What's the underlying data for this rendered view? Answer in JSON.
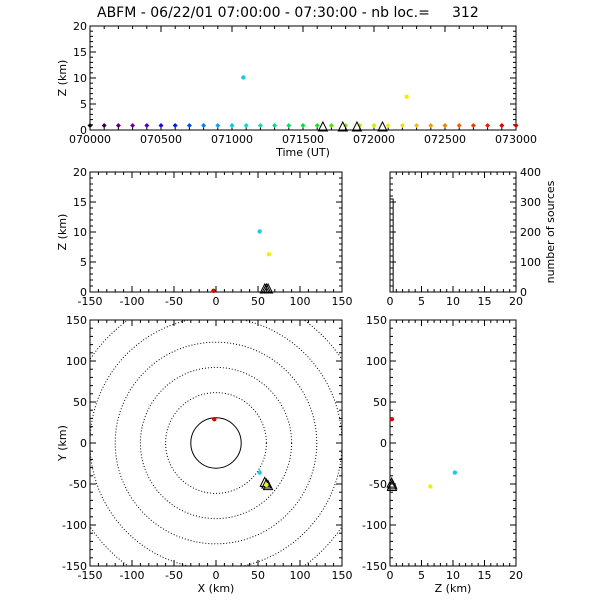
{
  "title": {
    "text": "ABFM - 06/22/01 07:00:00 - 07:30:00 - nb loc.=",
    "count": "312"
  },
  "chart_data": [
    {
      "id": "time-height",
      "type": "scatter",
      "xlabel": "Time (UT)",
      "ylabel": "Z (km)",
      "xlim": [
        70000,
        73000
      ],
      "ylim": [
        0,
        20
      ],
      "xticks": [
        "070000",
        "070500",
        "071000",
        "071500",
        "072000",
        "072500",
        "073000"
      ],
      "yticks": [
        "0",
        "5",
        "10",
        "15",
        "20"
      ],
      "points": [
        {
          "x": 71080,
          "y": 10.1,
          "color": "#1ec8e6"
        },
        {
          "x": 72230,
          "y": 6.4,
          "color": "#f0f000"
        }
      ],
      "sensors": [
        71640,
        71780,
        71880,
        72060
      ],
      "colorbar_x": [
        70000,
        70100,
        70200,
        70300,
        70400,
        70500,
        70600,
        70700,
        70800,
        70900,
        71000,
        71100,
        71200,
        71300,
        71400,
        71500,
        71600,
        71700,
        71800,
        71900,
        72000,
        72100,
        72200,
        72300,
        72400,
        72500,
        72600,
        72700,
        72800,
        72900,
        73000
      ],
      "colorbar_colors": [
        "#000000",
        "#3a0050",
        "#5a0078",
        "#6a00a0",
        "#5000c8",
        "#2a00e0",
        "#0020f0",
        "#0050f0",
        "#0080f0",
        "#00a8f0",
        "#00c8e6",
        "#00d8d0",
        "#00e0b0",
        "#00e090",
        "#00e070",
        "#00e040",
        "#20e020",
        "#50e000",
        "#80e800",
        "#a8f000",
        "#c8f000",
        "#e6f000",
        "#f0e000",
        "#f0c000",
        "#f0a000",
        "#f08000",
        "#f06000",
        "#f04000",
        "#e82000",
        "#e00000",
        "#d00000"
      ]
    },
    {
      "id": "x-height",
      "type": "scatter",
      "xlabel": "",
      "ylabel": "Z (km)",
      "xlim": [
        -150,
        150
      ],
      "ylim": [
        0,
        20
      ],
      "xticks": [
        "-150",
        "-100",
        "-50",
        "0",
        "50",
        "100",
        "150"
      ],
      "yticks": [
        "0",
        "5",
        "10",
        "15",
        "20"
      ],
      "points": [
        {
          "x": 52,
          "y": 10.1,
          "color": "#1ec8e6"
        },
        {
          "x": 63,
          "y": 6.3,
          "color": "#f0f000"
        },
        {
          "x": -3,
          "y": 0.2,
          "color": "#e00000"
        }
      ],
      "sensors": [
        58,
        60,
        62
      ]
    },
    {
      "id": "histogram",
      "type": "bar",
      "xlabel": "",
      "ylabel": "number of sources",
      "xlim": [
        0,
        20
      ],
      "ylim": [
        0,
        400
      ],
      "xticks": [
        "0",
        "5",
        "10",
        "15",
        "20"
      ],
      "yticks": [
        "0",
        "100",
        "200",
        "300",
        "400"
      ],
      "bins": [
        {
          "x0": 0,
          "x1": 0.5,
          "count": 310
        },
        {
          "x0": 0.5,
          "x1": 20,
          "count": 0
        }
      ]
    },
    {
      "id": "plan-view",
      "type": "scatter",
      "xlabel": "X (km)",
      "ylabel": "Y (km)",
      "xlim": [
        -150,
        150
      ],
      "ylim": [
        -150,
        150
      ],
      "xticks": [
        "-150",
        "-100",
        "-50",
        "0",
        "50",
        "100",
        "150"
      ],
      "yticks": [
        "-150",
        "-100",
        "-50",
        "0",
        "50",
        "100",
        "150"
      ],
      "range_rings_km": [
        30,
        60,
        90,
        120,
        150,
        180
      ],
      "points": [
        {
          "x": -2,
          "y": 29,
          "color": "#e00000"
        },
        {
          "x": 52,
          "y": -36,
          "color": "#1ec8e6"
        },
        {
          "x": 60,
          "y": -51,
          "color": "#f0f000"
        }
      ],
      "sensors": [
        [
          58,
          -48
        ],
        [
          62,
          -52
        ],
        [
          60,
          -50
        ]
      ]
    },
    {
      "id": "height-y",
      "type": "scatter",
      "xlabel": "Z (km)",
      "ylabel": "",
      "xlim": [
        0,
        20
      ],
      "ylim": [
        -150,
        150
      ],
      "xticks": [
        "0",
        "5",
        "10",
        "15",
        "20"
      ],
      "yticks": [
        "-150",
        "-100",
        "-50",
        "0",
        "50",
        "100",
        "150"
      ],
      "points": [
        {
          "x": 0.3,
          "y": 29,
          "color": "#e00000"
        },
        {
          "x": 10.3,
          "y": -36,
          "color": "#1ec8e6"
        },
        {
          "x": 6.4,
          "y": -53,
          "color": "#f0f000"
        }
      ],
      "sensors": [
        [
          0.1,
          -49
        ],
        [
          0.2,
          -51
        ],
        [
          0.15,
          -53
        ]
      ]
    }
  ]
}
